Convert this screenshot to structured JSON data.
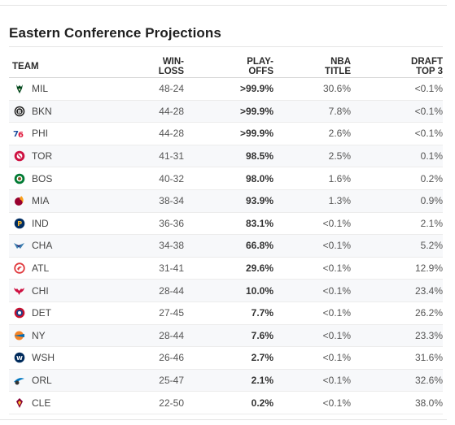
{
  "title": "Eastern Conference Projections",
  "headers": {
    "team": "TEAM",
    "win_loss": [
      "WIN-",
      "LOSS"
    ],
    "playoffs": [
      "PLAY-",
      "OFFS"
    ],
    "nba_title": [
      "NBA",
      "TITLE"
    ],
    "draft_top3": [
      "DRAFT",
      "TOP 3"
    ]
  },
  "rows": [
    {
      "team": "MIL",
      "record": "48-24",
      "playoffs": ">99.9%",
      "title": "30.6%",
      "draft": "<0.1%",
      "logo": "bucks-logo-icon",
      "color": "#00471b"
    },
    {
      "team": "BKN",
      "record": "44-28",
      "playoffs": ">99.9%",
      "title": "7.8%",
      "draft": "<0.1%",
      "logo": "nets-logo-icon",
      "color": "#222222"
    },
    {
      "team": "PHI",
      "record": "44-28",
      "playoffs": ">99.9%",
      "title": "2.6%",
      "draft": "<0.1%",
      "logo": "sixers-logo-icon",
      "color": "#1d4fa0"
    },
    {
      "team": "TOR",
      "record": "41-31",
      "playoffs": "98.5%",
      "title": "2.5%",
      "draft": "0.1%",
      "logo": "raptors-logo-icon",
      "color": "#ce1141"
    },
    {
      "team": "BOS",
      "record": "40-32",
      "playoffs": "98.0%",
      "title": "1.6%",
      "draft": "0.2%",
      "logo": "celtics-logo-icon",
      "color": "#007a33"
    },
    {
      "team": "MIA",
      "record": "38-34",
      "playoffs": "93.9%",
      "title": "1.3%",
      "draft": "0.9%",
      "logo": "heat-logo-icon",
      "color": "#98002e"
    },
    {
      "team": "IND",
      "record": "36-36",
      "playoffs": "83.1%",
      "title": "<0.1%",
      "draft": "2.1%",
      "logo": "pacers-logo-icon",
      "color": "#002d62"
    },
    {
      "team": "CHA",
      "record": "34-38",
      "playoffs": "66.8%",
      "title": "<0.1%",
      "draft": "5.2%",
      "logo": "hornets-logo-icon",
      "color": "#3c7fb1"
    },
    {
      "team": "ATL",
      "record": "31-41",
      "playoffs": "29.6%",
      "title": "<0.1%",
      "draft": "12.9%",
      "logo": "hawks-logo-icon",
      "color": "#e03a3e"
    },
    {
      "team": "CHI",
      "record": "28-44",
      "playoffs": "10.0%",
      "title": "<0.1%",
      "draft": "23.4%",
      "logo": "bulls-logo-icon",
      "color": "#ce1141"
    },
    {
      "team": "DET",
      "record": "27-45",
      "playoffs": "7.7%",
      "title": "<0.1%",
      "draft": "26.2%",
      "logo": "pistons-logo-icon",
      "color": "#c8102e"
    },
    {
      "team": "NY",
      "record": "28-44",
      "playoffs": "7.6%",
      "title": "<0.1%",
      "draft": "23.3%",
      "logo": "knicks-logo-icon",
      "color": "#f58426"
    },
    {
      "team": "WSH",
      "record": "26-46",
      "playoffs": "2.7%",
      "title": "<0.1%",
      "draft": "31.6%",
      "logo": "wizards-logo-icon",
      "color": "#002b5c"
    },
    {
      "team": "ORL",
      "record": "25-47",
      "playoffs": "2.1%",
      "title": "<0.1%",
      "draft": "32.6%",
      "logo": "magic-logo-icon",
      "color": "#0077c0"
    },
    {
      "team": "CLE",
      "record": "22-50",
      "playoffs": "0.2%",
      "title": "<0.1%",
      "draft": "38.0%",
      "logo": "cavaliers-logo-icon",
      "color": "#860038"
    }
  ]
}
